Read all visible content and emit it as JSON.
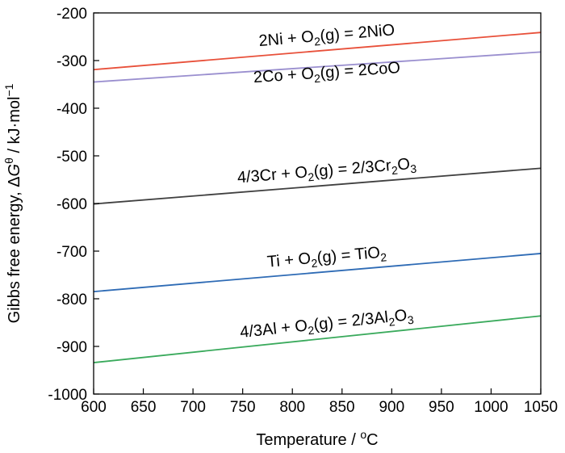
{
  "chart_data": {
    "type": "line",
    "xlabel": {
      "text": "Temperature / ",
      "sup": "o",
      "after": "C"
    },
    "ylabel": {
      "pre": "Gibbs free energy, ",
      "delta": "Δ",
      "G": "G",
      "sup": "θ",
      "post": " / kJ·mol",
      "exp": "−1"
    },
    "xlim": [
      600,
      1050
    ],
    "ylim": [
      -1000,
      -200
    ],
    "xticks": [
      "600",
      "650",
      "700",
      "750",
      "800",
      "850",
      "900",
      "950",
      "1000",
      "1050"
    ],
    "yticks": [
      "-200",
      "-300",
      "-400",
      "-500",
      "-600",
      "-700",
      "-800",
      "-900",
      "-1000"
    ],
    "grid": false,
    "series": [
      {
        "name": "2Ni + O2(g) = 2NiO",
        "label_parts": [
          {
            "t": "2Ni + O"
          },
          {
            "t": "2",
            "sub": true
          },
          {
            "t": "(g) = 2NiO"
          }
        ],
        "color": "#e8503a",
        "x": [
          600,
          1050
        ],
        "y": [
          -319,
          -241
        ]
      },
      {
        "name": "2Co + O2(g) = 2CoO",
        "label_parts": [
          {
            "t": "2Co + O"
          },
          {
            "t": "2",
            "sub": true
          },
          {
            "t": "(g) = 2CoO"
          }
        ],
        "color": "#9a8fcf",
        "x": [
          600,
          1050
        ],
        "y": [
          -345,
          -282
        ]
      },
      {
        "name": "4/3Cr + O2(g) = 2/3Cr2O3",
        "label_parts": [
          {
            "t": "4/3Cr + O"
          },
          {
            "t": "2",
            "sub": true
          },
          {
            "t": "(g) = 2/3Cr"
          },
          {
            "t": "2",
            "sub": true
          },
          {
            "t": "O"
          },
          {
            "t": "3",
            "sub": true
          }
        ],
        "color": "#404040",
        "x": [
          600,
          1050
        ],
        "y": [
          -601,
          -526
        ]
      },
      {
        "name": "Ti + O2(g) = TiO2",
        "label_parts": [
          {
            "t": "Ti + O"
          },
          {
            "t": "2",
            "sub": true
          },
          {
            "t": "(g) = TiO"
          },
          {
            "t": "2",
            "sub": true
          }
        ],
        "color": "#2e6bb5",
        "x": [
          600,
          1050
        ],
        "y": [
          -785,
          -705
        ]
      },
      {
        "name": "4/3Al + O2(g) = 2/3Al2O3",
        "label_parts": [
          {
            "t": "4/3Al + O"
          },
          {
            "t": "2",
            "sub": true
          },
          {
            "t": "(g) = 2/3Al"
          },
          {
            "t": "2",
            "sub": true
          },
          {
            "t": "O"
          },
          {
            "t": "3",
            "sub": true
          }
        ],
        "color": "#3aaa5c",
        "x": [
          600,
          1050
        ],
        "y": [
          -934,
          -836
        ]
      }
    ]
  }
}
